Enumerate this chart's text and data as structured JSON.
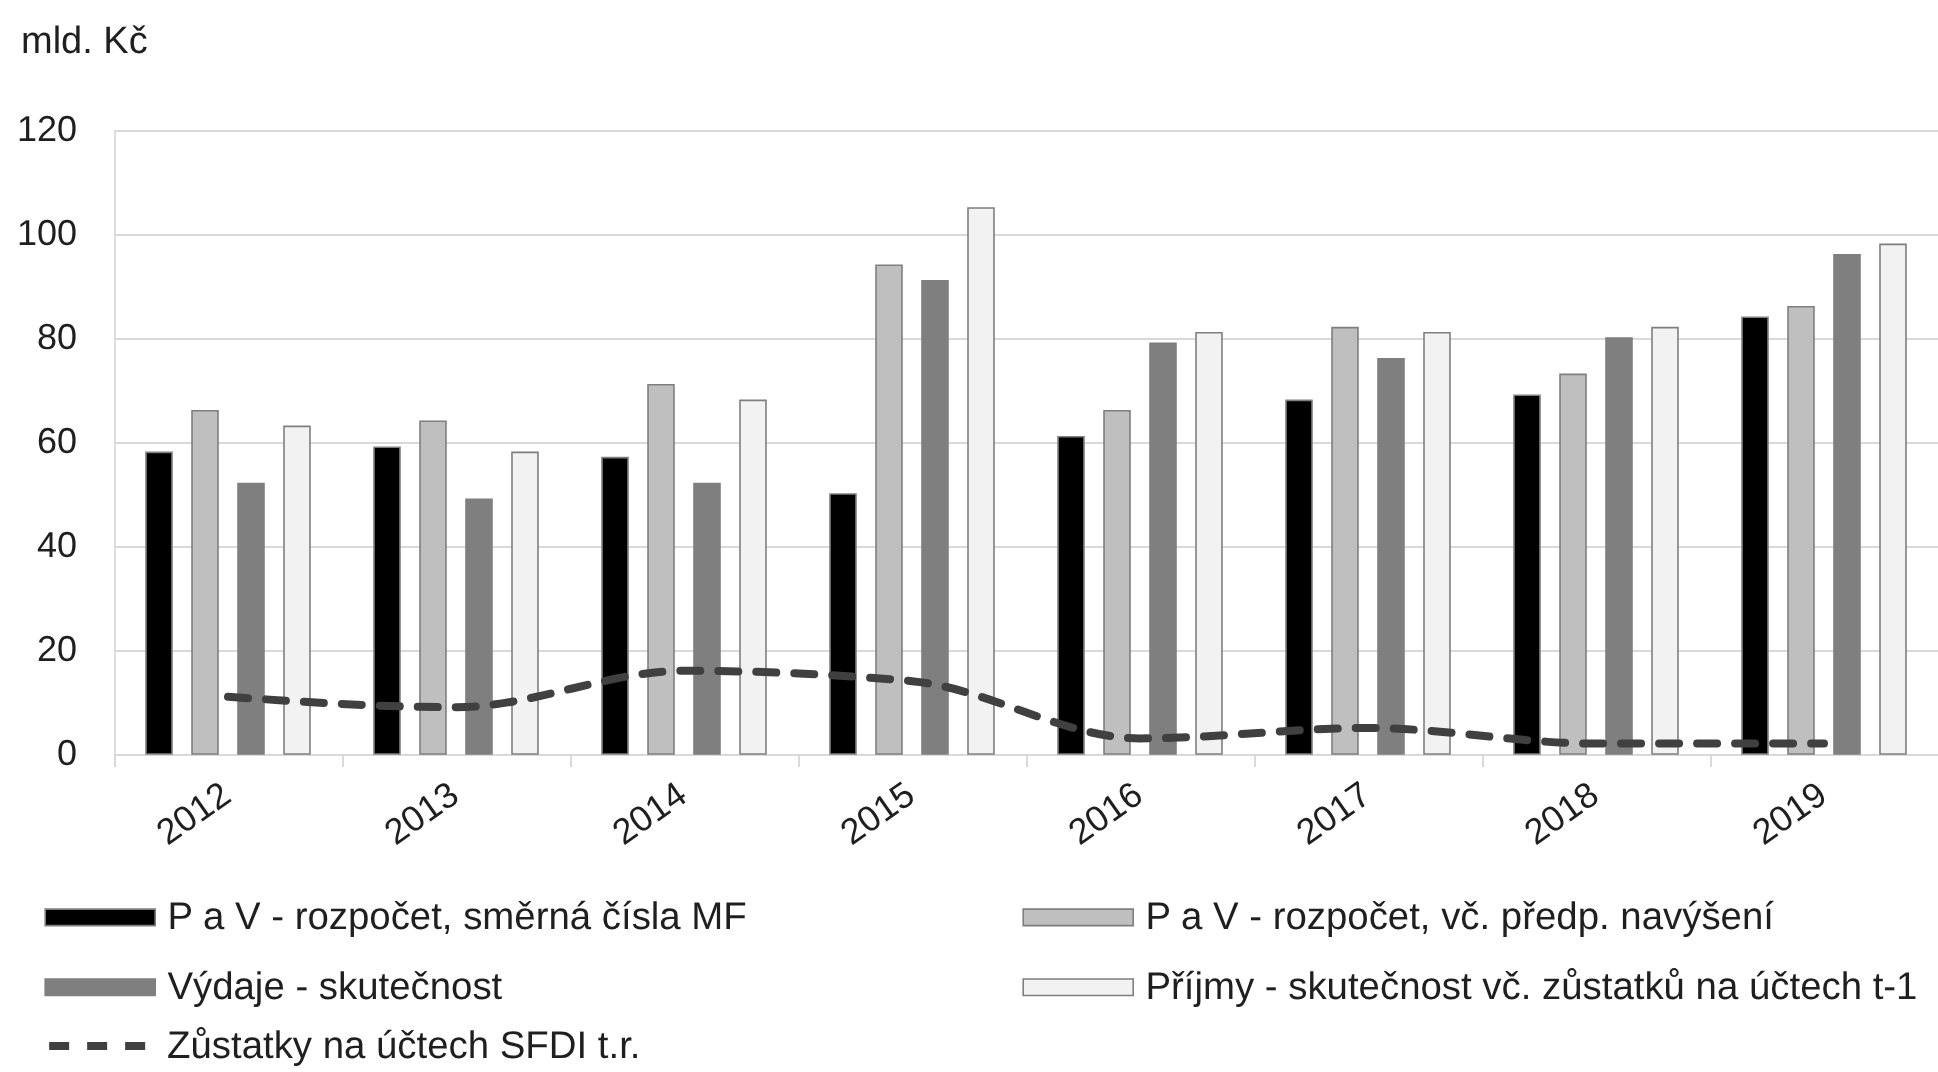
{
  "chart_data": {
    "type": "bar",
    "ylabel": "mld. Kč",
    "categories": [
      "2012",
      "2013",
      "2014",
      "2015",
      "2016",
      "2017",
      "2018",
      "2019"
    ],
    "series": [
      {
        "name": "P a V - rozpočet, směrná čísla MF",
        "color": "#000000",
        "values": [
          58,
          59,
          57,
          50,
          61,
          68,
          69,
          84
        ]
      },
      {
        "name": "P a V - rozpočet, vč. předp. navýšení",
        "color": "#bfbfbf",
        "values": [
          66,
          64,
          71,
          94,
          66,
          82,
          73,
          86
        ]
      },
      {
        "name": "Výdaje - skutečnost",
        "color": "#7f7f7f",
        "values": [
          52,
          49,
          52,
          91,
          79,
          76,
          80,
          96
        ]
      },
      {
        "name": "Příjmy - skutečnost vč. zůstatků na účtech t-1",
        "color": "#f2f2f2",
        "values": [
          63,
          58,
          68,
          105,
          81,
          81,
          82,
          98
        ]
      },
      {
        "type": "line",
        "name": "Zůstatky na účtech SFDI t.r.",
        "color": "#404040",
        "line_style": "dashed",
        "values": [
          11,
          9,
          16,
          14,
          3,
          5,
          2,
          2
        ]
      }
    ],
    "ylim": [
      0,
      120
    ],
    "yticks": [
      0,
      20,
      40,
      60,
      80,
      100,
      120
    ],
    "grid": "y",
    "legend": "bottom"
  }
}
